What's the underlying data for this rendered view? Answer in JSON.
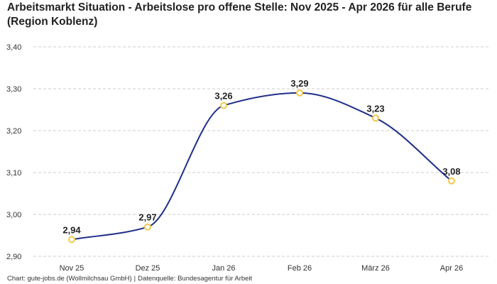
{
  "chart_data": {
    "type": "line",
    "title": "Arbeitsmarkt Situation - Arbeitslose pro offene Stelle: Nov 2025 - Apr 2026 für alle Berufe (Region Koblenz)",
    "xlabel": "",
    "ylabel": "",
    "categories": [
      "Nov 25",
      "Dez 25",
      "Jan 26",
      "Feb 26",
      "März 26",
      "Apr 26"
    ],
    "values": [
      2.94,
      2.97,
      3.26,
      3.29,
      3.23,
      3.08
    ],
    "value_labels": [
      "2,94",
      "2,97",
      "3,26",
      "3,29",
      "3,23",
      "3,08"
    ],
    "ylim": [
      2.9,
      3.4
    ],
    "yticks": [
      2.9,
      3.0,
      3.1,
      3.2,
      3.3,
      3.4
    ],
    "ytick_labels": [
      "2,90",
      "3,00",
      "3,10",
      "3,20",
      "3,30",
      "3,40"
    ],
    "grid": true,
    "smooth": true,
    "line_color": "#1f2f8a",
    "marker_color": "#f2c94c",
    "grid_color": "#cccccc"
  },
  "footer": {
    "chart_source": "Chart: gute-jobs.de (Wollmilchsau GmbH)",
    "separator": "|",
    "data_source": "Datenquelle: Bundesagentur für Arbeit"
  }
}
